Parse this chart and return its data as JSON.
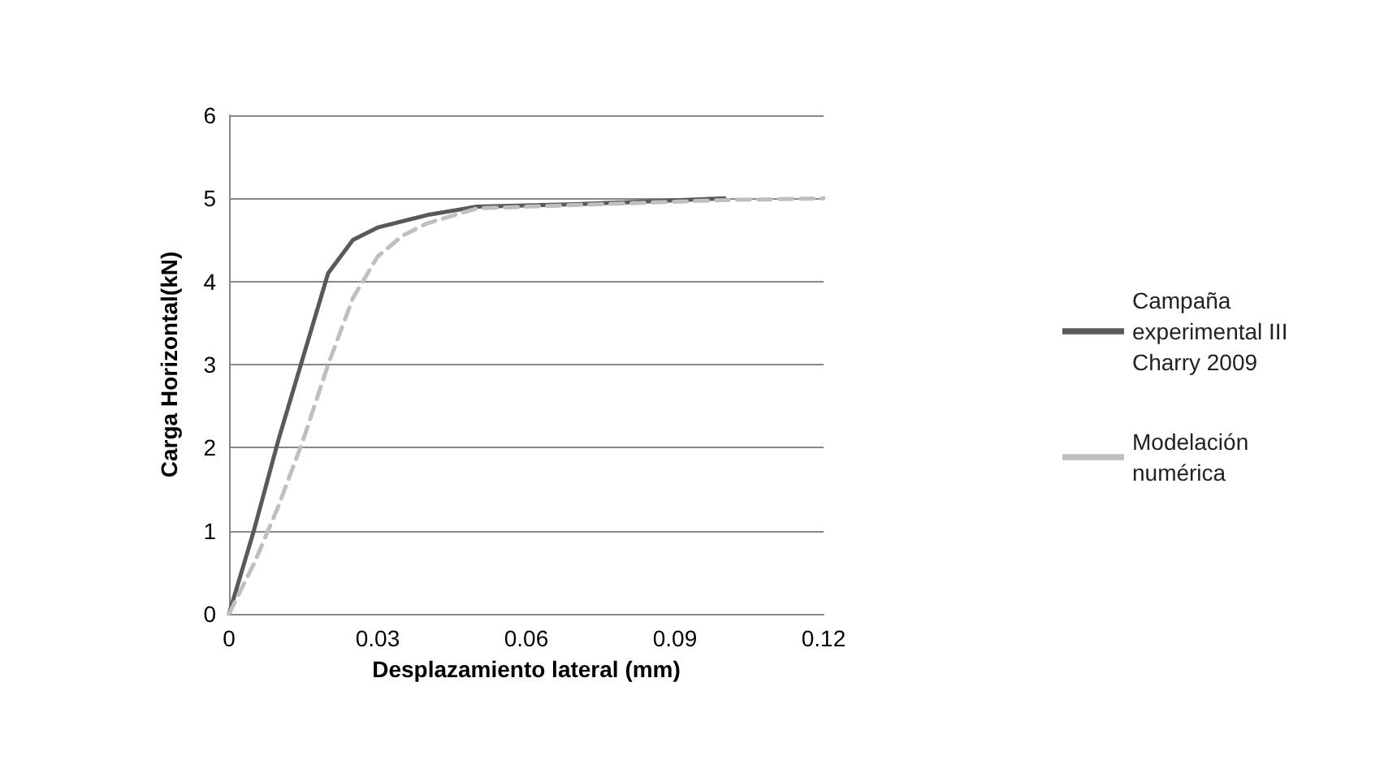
{
  "chart_data": {
    "type": "line",
    "xlabel": "Desplazamiento lateral (mm)",
    "ylabel": "Carga Horizontal(kN)",
    "xlim": [
      0,
      0.12
    ],
    "xticks": [
      0,
      0.03,
      0.06,
      0.09,
      0.12
    ],
    "ylim": [
      0,
      6
    ],
    "yticks": [
      0,
      1,
      2,
      3,
      4,
      5,
      6
    ],
    "grid": "y",
    "legend": "right",
    "marker": "none",
    "series": [
      {
        "name": "Campaña experimental III Charry 2009",
        "color": "#595959",
        "line_style": "solid",
        "x": [
          0,
          0.005,
          0.01,
          0.015,
          0.02,
          0.025,
          0.03,
          0.04,
          0.05,
          0.07,
          0.1
        ],
        "values": [
          0,
          1,
          2.1,
          3.1,
          4.1,
          4.5,
          4.65,
          4.8,
          4.9,
          4.93,
          5.0
        ]
      },
      {
        "name": "Modelación numérica",
        "color": "#bfbfbf",
        "line_style": "dashed",
        "x": [
          0,
          0.005,
          0.01,
          0.015,
          0.02,
          0.025,
          0.03,
          0.035,
          0.04,
          0.05,
          0.07,
          0.1,
          0.12
        ],
        "values": [
          0,
          0.6,
          1.3,
          2.1,
          3.0,
          3.8,
          4.3,
          4.55,
          4.7,
          4.88,
          4.92,
          4.98,
          5.0
        ]
      }
    ]
  }
}
